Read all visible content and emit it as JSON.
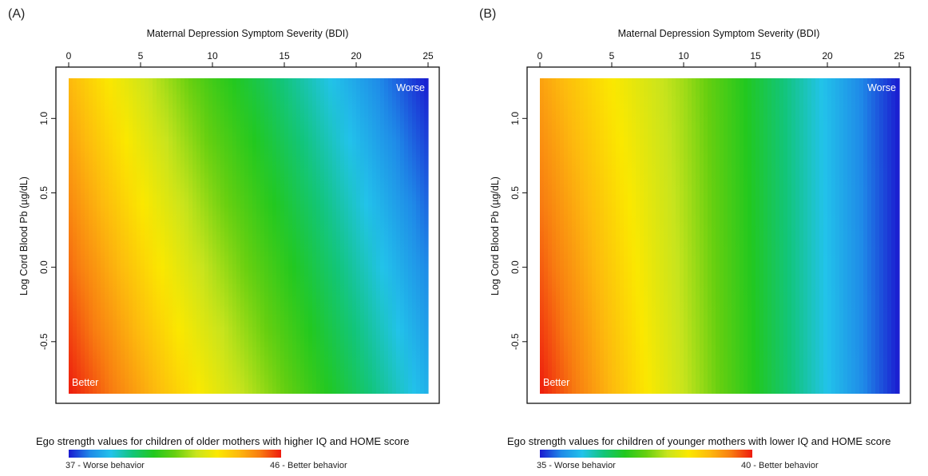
{
  "figure": {
    "panels": [
      {
        "panel_label": "(A)",
        "inner_label_worse": "Worse",
        "inner_label_better": "Better",
        "colorbar": {
          "title": "Ego strength values for children of older mothers with higher IQ and HOME score",
          "low_label": "37 - Worse behavior",
          "high_label": "46 - Better behavior",
          "low": 37,
          "high": 46
        }
      },
      {
        "panel_label": "(B)",
        "inner_label_worse": "Worse",
        "inner_label_better": "Better",
        "colorbar": {
          "title": "Ego strength values for children of younger mothers with lower IQ and HOME score",
          "low_label": "35 - Worse behavior",
          "high_label": "40 - Better behavior",
          "low": 35,
          "high": 40
        }
      }
    ],
    "colormap": [
      "#1a1ad0",
      "#1f8ae8",
      "#22c3ea",
      "#12c57a",
      "#22c81f",
      "#66cf10",
      "#c8e41d",
      "#fbe800",
      "#fdb90e",
      "#f87c11",
      "#ee1b0e"
    ]
  },
  "chart_data": [
    {
      "type": "heatmap",
      "title": "",
      "xlabel": "Maternal Depression Symptom Severity (BDI)",
      "ylabel": "Log Cord Blood Pb (µg/dL)",
      "xlim": [
        0,
        25
      ],
      "ylim": [
        -0.85,
        1.27
      ],
      "xticks": [
        0,
        5,
        10,
        15,
        20,
        25
      ],
      "xtick_labels": [
        "0",
        "5",
        "10",
        "15",
        "20",
        "25"
      ],
      "yticks": [
        -0.5,
        0.0,
        0.5,
        1.0
      ],
      "ytick_labels": [
        "-0.5",
        "0.0",
        "0.5",
        "1.0"
      ],
      "x_axis_position": "top",
      "value_range": [
        37,
        46
      ],
      "value_gradient": {
        "description": "ego strength decreases with BDI and with log cord blood Pb",
        "at_x0_ymin": 46,
        "at_x25_ymax": 37,
        "points": [
          {
            "x": 0,
            "y": -0.85,
            "value": 46.0
          },
          {
            "x": 0,
            "y": 1.27,
            "value": 44.2
          },
          {
            "x": 10,
            "y": -0.85,
            "value": 43.0
          },
          {
            "x": 10,
            "y": 1.27,
            "value": 41.0
          },
          {
            "x": 25,
            "y": -0.85,
            "value": 38.5
          },
          {
            "x": 25,
            "y": 1.27,
            "value": 37.0
          }
        ]
      }
    },
    {
      "type": "heatmap",
      "title": "",
      "xlabel": "Maternal Depression Symptom Severity (BDI)",
      "ylabel": "Log Cord Blood Pb (µg/dL)",
      "xlim": [
        0,
        25
      ],
      "ylim": [
        -0.85,
        1.27
      ],
      "xticks": [
        0,
        5,
        10,
        15,
        20,
        25
      ],
      "xtick_labels": [
        "0",
        "5",
        "10",
        "15",
        "20",
        "25"
      ],
      "yticks": [
        -0.5,
        0.0,
        0.5,
        1.0
      ],
      "ytick_labels": [
        "-0.5",
        "0.0",
        "0.5",
        "1.0"
      ],
      "x_axis_position": "top",
      "value_range": [
        35,
        40
      ],
      "value_gradient": {
        "description": "ego strength decreases with BDI; nearly independent of log cord blood Pb",
        "at_x0_ymin": 40,
        "at_x25_ymax": 35,
        "points": [
          {
            "x": 0,
            "y": -0.85,
            "value": 40.0
          },
          {
            "x": 0,
            "y": 1.27,
            "value": 39.2
          },
          {
            "x": 10,
            "y": -0.85,
            "value": 38.0
          },
          {
            "x": 10,
            "y": 1.27,
            "value": 37.8
          },
          {
            "x": 25,
            "y": -0.85,
            "value": 35.0
          },
          {
            "x": 25,
            "y": 1.27,
            "value": 35.0
          }
        ]
      }
    }
  ]
}
